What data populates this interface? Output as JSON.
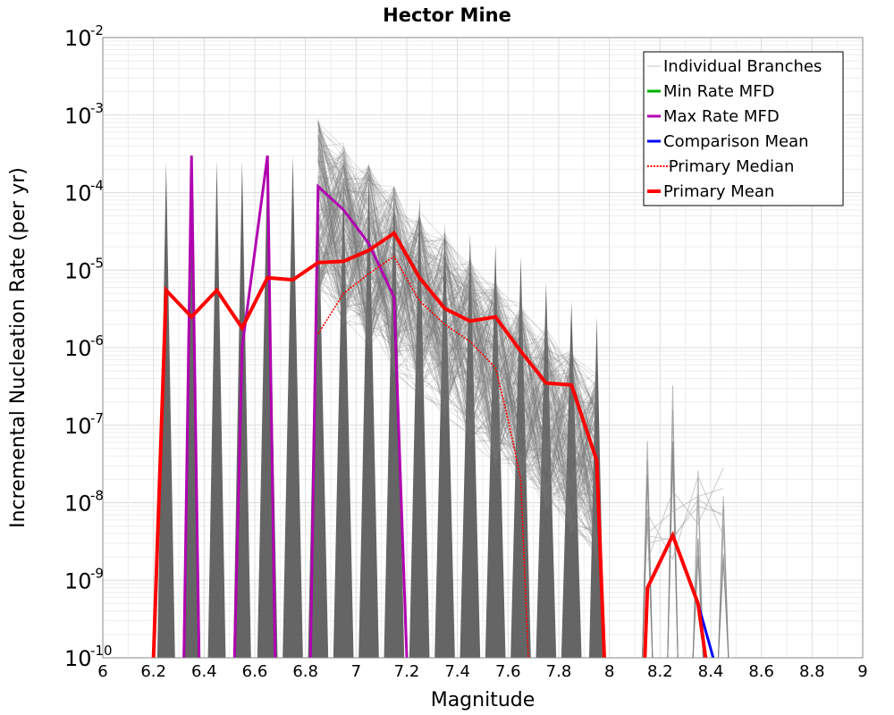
{
  "chart_data": {
    "type": "line",
    "title": "Hector Mine",
    "xlabel": "Magnitude",
    "ylabel": "Incremental Nucleation Rate (per yr)",
    "xlim": [
      6,
      9
    ],
    "ylim": [
      1e-10,
      0.01
    ],
    "yscale": "log",
    "grid": true,
    "legend_position": "top-right",
    "x_ticks": [
      "6",
      "6.2",
      "6.4",
      "6.6",
      "6.8",
      "7",
      "7.2",
      "7.4",
      "7.6",
      "7.8",
      "8",
      "8.2",
      "8.4",
      "8.6",
      "8.8",
      "9"
    ],
    "y_ticks": [
      {
        "base": "10",
        "exp": "-2"
      },
      {
        "base": "10",
        "exp": "-3"
      },
      {
        "base": "10",
        "exp": "-4"
      },
      {
        "base": "10",
        "exp": "-5"
      },
      {
        "base": "10",
        "exp": "-6"
      },
      {
        "base": "10",
        "exp": "-7"
      },
      {
        "base": "10",
        "exp": "-8"
      },
      {
        "base": "10",
        "exp": "-9"
      },
      {
        "base": "10",
        "exp": "-10"
      }
    ],
    "legend": [
      {
        "label": "Individual Branches",
        "color": "#c8c8c8",
        "style": "thin"
      },
      {
        "label": "Min Rate MFD",
        "color": "#00b000",
        "style": "solid"
      },
      {
        "label": "Max Rate MFD",
        "color": "#b000b0",
        "style": "solid"
      },
      {
        "label": "Comparison Mean",
        "color": "#0000ff",
        "style": "solid"
      },
      {
        "label": " Primary Median",
        "color": "#ff0000",
        "style": "dotted"
      },
      {
        "label": "Primary Mean",
        "color": "#ff0000",
        "style": "thick"
      }
    ],
    "series": [
      {
        "name": "Primary Mean",
        "color": "#ff0000",
        "segments": [
          [
            [
              6.2,
              1e-10
            ],
            [
              6.25,
              5.5e-06
            ],
            [
              6.35,
              2.5e-06
            ],
            [
              6.45,
              5.5e-06
            ],
            [
              6.55,
              1.8e-06
            ],
            [
              6.65,
              8e-06
            ],
            [
              6.75,
              7.5e-06
            ],
            [
              6.85,
              1.25e-05
            ],
            [
              6.95,
              1.3e-05
            ],
            [
              7.05,
              1.8e-05
            ],
            [
              7.15,
              3e-05
            ],
            [
              7.25,
              8e-06
            ],
            [
              7.35,
              3.2e-06
            ],
            [
              7.45,
              2.2e-06
            ],
            [
              7.55,
              2.5e-06
            ],
            [
              7.65,
              9e-07
            ],
            [
              7.75,
              3.5e-07
            ],
            [
              7.85,
              3.3e-07
            ],
            [
              7.95,
              3.5e-08
            ],
            [
              7.98,
              1e-10
            ]
          ],
          [
            [
              8.14,
              1e-10
            ],
            [
              8.15,
              8e-10
            ],
            [
              8.25,
              3.8e-09
            ],
            [
              8.35,
              5e-10
            ],
            [
              8.38,
              1e-10
            ]
          ]
        ]
      },
      {
        "name": "Primary Median",
        "color": "#ff0000",
        "segments": [
          [
            [
              6.85,
              1.5e-06
            ],
            [
              6.95,
              5e-06
            ],
            [
              7.05,
              9e-06
            ],
            [
              7.15,
              1.5e-05
            ],
            [
              7.25,
              4e-06
            ],
            [
              7.35,
              2e-06
            ],
            [
              7.45,
              1.2e-06
            ],
            [
              7.55,
              5.5e-07
            ],
            [
              7.6,
              1.2e-07
            ],
            [
              7.65,
              2e-08
            ],
            [
              7.68,
              1e-10
            ]
          ]
        ]
      },
      {
        "name": "Max Rate MFD",
        "color": "#b000b0",
        "segments": [
          [
            [
              6.32,
              1e-10
            ],
            [
              6.35,
              0.0003
            ],
            [
              6.38,
              1e-10
            ]
          ],
          [
            [
              6.52,
              1e-10
            ],
            [
              6.55,
              1e-06
            ],
            [
              6.65,
              0.0003
            ],
            [
              6.68,
              1e-10
            ]
          ],
          [
            [
              6.82,
              1e-10
            ],
            [
              6.85,
              0.00012
            ],
            [
              6.95,
              6e-05
            ],
            [
              7.05,
              2.2e-05
            ],
            [
              7.15,
              4.5e-06
            ],
            [
              7.2,
              1e-10
            ]
          ]
        ]
      },
      {
        "name": "Comparison Mean",
        "color": "#0000ff",
        "segments": [
          [
            [
              8.35,
              5e-10
            ],
            [
              8.41,
              1e-10
            ]
          ]
        ]
      }
    ]
  }
}
